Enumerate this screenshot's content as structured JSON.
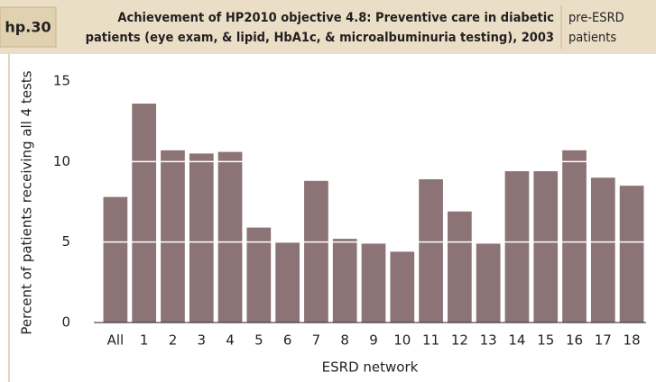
{
  "header": {
    "figure_id": "hp.30",
    "title_lines": [
      "Achievement of HP2010 objective 4.8: Preventive care in diabetic",
      "patients (eye exam, & lipid, HbA1c, & microalbuminuria testing), 2003"
    ],
    "population_lines": [
      "pre-ESRD",
      "patients"
    ]
  },
  "chart_data": {
    "type": "bar",
    "x_label": "ESRD network",
    "y_label": "Percent of patients receiving all 4 tests",
    "categories": [
      "All",
      "1",
      "2",
      "3",
      "4",
      "5",
      "6",
      "7",
      "8",
      "9",
      "10",
      "11",
      "12",
      "13",
      "14",
      "15",
      "16",
      "17",
      "18"
    ],
    "values": [
      7.8,
      13.6,
      10.7,
      10.5,
      10.6,
      5.9,
      5.0,
      8.8,
      5.2,
      4.9,
      4.4,
      8.9,
      6.9,
      4.9,
      9.4,
      9.4,
      10.7,
      9.0,
      8.5
    ],
    "color": "#8c7376",
    "ylim": [
      0,
      15
    ],
    "yticks": [
      0,
      5,
      10,
      15
    ],
    "grid": true
  }
}
